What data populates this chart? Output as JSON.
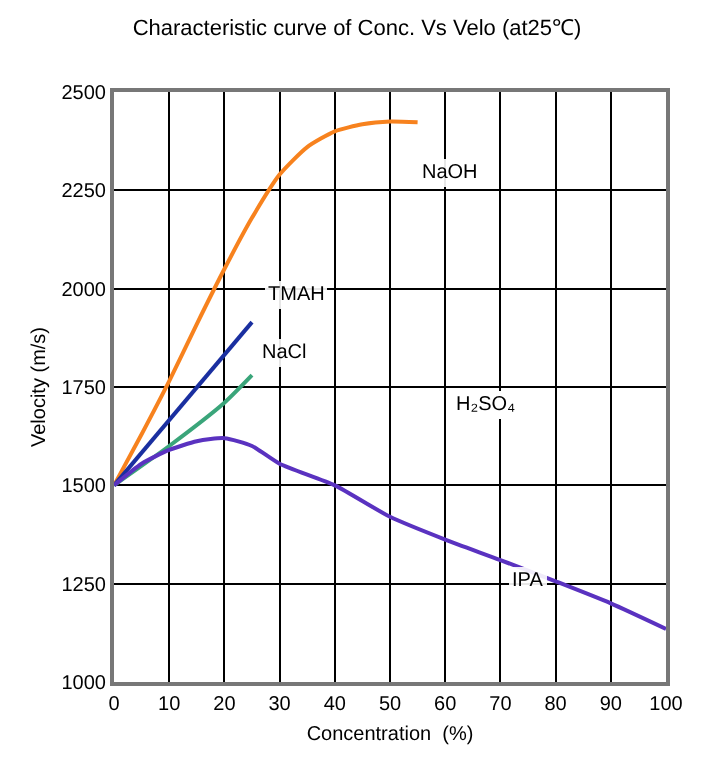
{
  "chart_data": {
    "type": "line",
    "title": "Characteristic curve of Conc. Vs Velo (at25℃)",
    "xlabel": "Concentration  (%)",
    "ylabel": "Velocity (m/s)",
    "xlim": [
      0,
      100
    ],
    "xticks": [
      0,
      10,
      20,
      30,
      40,
      50,
      60,
      70,
      80,
      90,
      100
    ],
    "ylim": [
      1000,
      2500
    ],
    "yticks": [
      1000,
      1250,
      1500,
      1750,
      2000,
      2250,
      2500
    ],
    "grid": true,
    "legend": false,
    "marker": "none",
    "line_style": "solid",
    "series": [
      {
        "name": "NaOH",
        "color": "#f7821e",
        "x": [
          0,
          5,
          10,
          15,
          20,
          25,
          30,
          35,
          40,
          45,
          50,
          55
        ],
        "values": [
          1500,
          1630,
          1765,
          1910,
          2050,
          2180,
          2290,
          2360,
          2400,
          2418,
          2425,
          2423
        ]
      },
      {
        "name": "TMAH",
        "color": "#1a2fa0",
        "x": [
          0,
          25
        ],
        "values": [
          1500,
          1915
        ]
      },
      {
        "name": "NaCl",
        "color": "#3aa57a",
        "x": [
          0,
          10,
          20,
          25
        ],
        "values": [
          1500,
          1600,
          1710,
          1780
        ]
      },
      {
        "name": "IPA",
        "color": "#5a32c0",
        "x": [
          0,
          5,
          10,
          15,
          20,
          25,
          30,
          40,
          50,
          60,
          70,
          80,
          90,
          100
        ],
        "values": [
          1500,
          1555,
          1590,
          1612,
          1620,
          1600,
          1555,
          1500,
          1420,
          1362,
          1310,
          1256,
          1200,
          1135
        ]
      }
    ],
    "annotations": [
      "H₂SO₄"
    ]
  }
}
